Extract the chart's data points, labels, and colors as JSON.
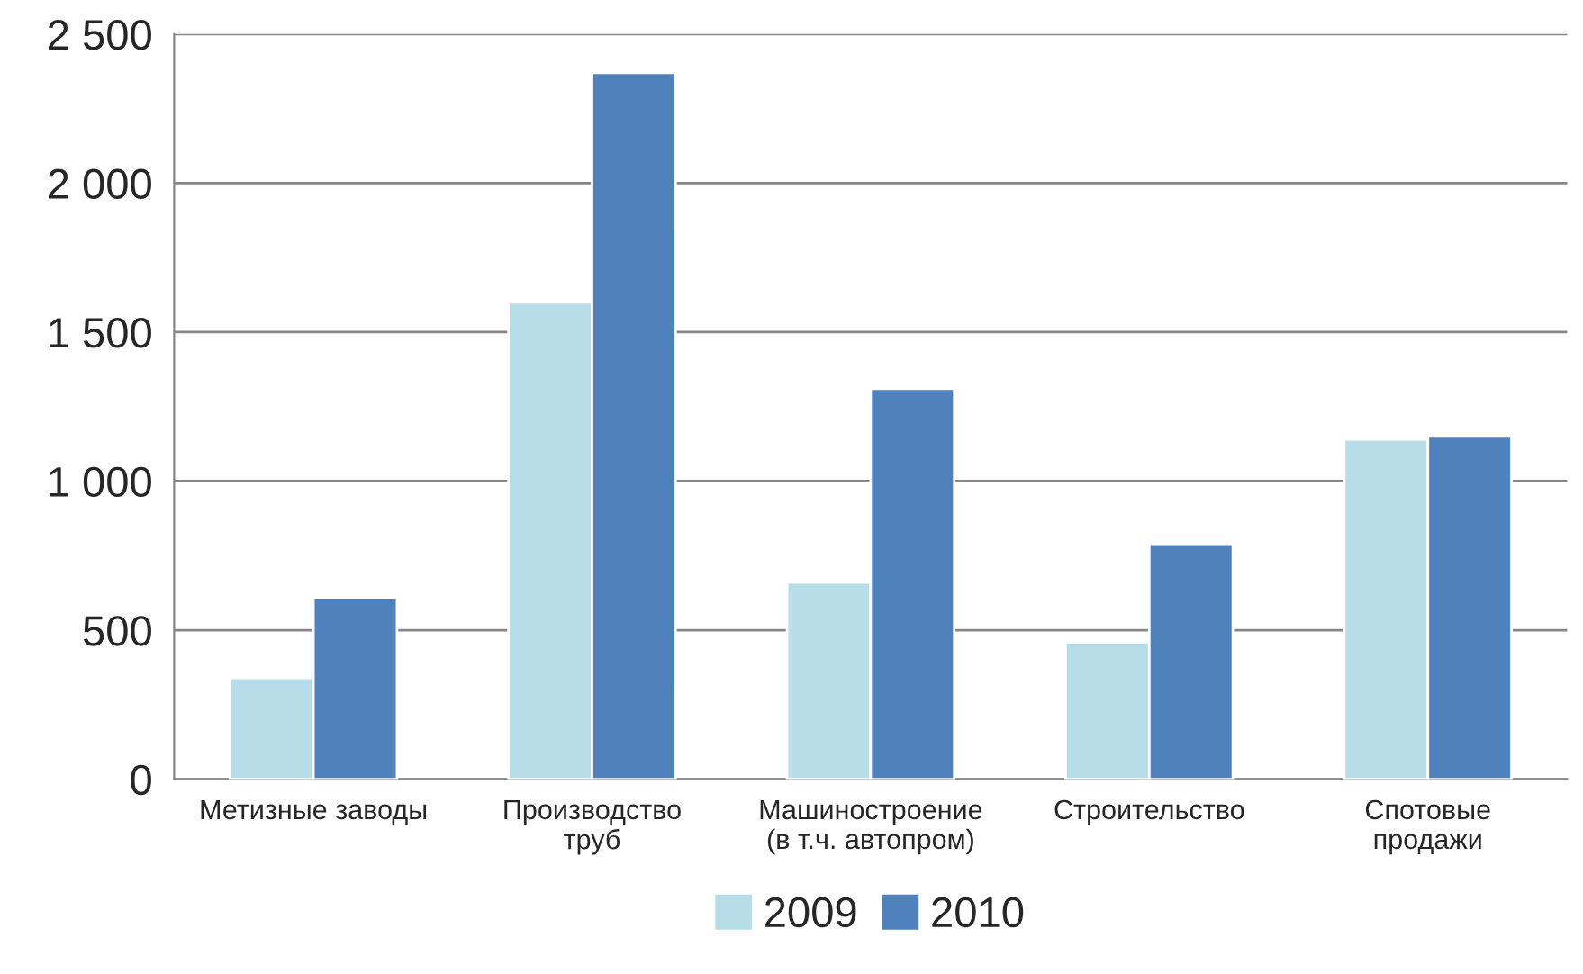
{
  "chart_data": {
    "type": "bar",
    "categories": [
      "Метизные заводы",
      "Производство\nтруб",
      "Машиностроение\n(в т.ч. автопром)",
      "Строительство",
      "Спотовые\nпродажи"
    ],
    "series": [
      {
        "name": "2009",
        "color": "#b7dde8",
        "values": [
          340,
          1600,
          660,
          460,
          1140
        ]
      },
      {
        "name": "2010",
        "color": "#4f81bd",
        "values": [
          610,
          2370,
          1310,
          790,
          1150
        ]
      }
    ],
    "ylim": [
      0,
      2500
    ],
    "yticks": [
      {
        "value": 0,
        "label": "0"
      },
      {
        "value": 500,
        "label": "500"
      },
      {
        "value": 1000,
        "label": "1 000"
      },
      {
        "value": 1500,
        "label": "1 500"
      },
      {
        "value": 2000,
        "label": "2 000"
      },
      {
        "value": 2500,
        "label": "2 500"
      }
    ],
    "grid": "y",
    "legend": "bottom"
  }
}
